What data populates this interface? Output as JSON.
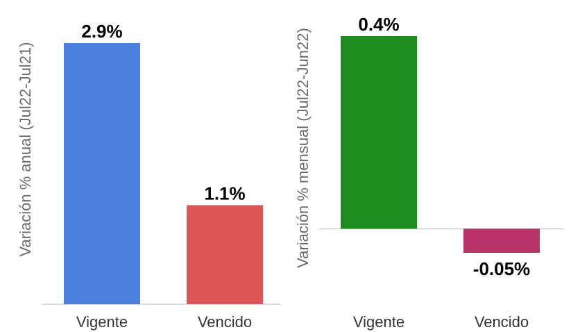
{
  "chart_data": [
    {
      "type": "bar",
      "ylabel": "Variación % anual (Jul22-Jul21)",
      "categories": [
        "Vigente",
        "Vencido"
      ],
      "values": [
        2.9,
        1.1
      ],
      "data_labels": [
        "2.9%",
        "1.1%"
      ],
      "colors": [
        "#4a7fe0",
        "#dd5555"
      ],
      "ylim": [
        0,
        2.9
      ],
      "grid": false
    },
    {
      "type": "bar",
      "ylabel": "Variación % mensual (Jul22-Jun22)",
      "categories": [
        "Vigente",
        "Vencido"
      ],
      "values": [
        0.4,
        -0.05
      ],
      "data_labels": [
        "0.4%",
        "-0.05%"
      ],
      "colors": [
        "#1e8b1e",
        "#b83468"
      ],
      "ylim": [
        -0.05,
        0.4
      ],
      "grid": false
    }
  ]
}
